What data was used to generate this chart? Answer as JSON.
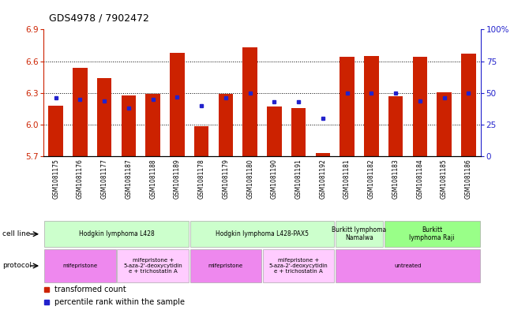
{
  "title": "GDS4978 / 7902472",
  "samples": [
    "GSM1081175",
    "GSM1081176",
    "GSM1081177",
    "GSM1081187",
    "GSM1081188",
    "GSM1081189",
    "GSM1081178",
    "GSM1081179",
    "GSM1081180",
    "GSM1081190",
    "GSM1081191",
    "GSM1081192",
    "GSM1081181",
    "GSM1081182",
    "GSM1081183",
    "GSM1081184",
    "GSM1081185",
    "GSM1081186"
  ],
  "bar_values": [
    6.18,
    6.54,
    6.44,
    6.28,
    6.29,
    6.68,
    5.99,
    6.29,
    6.73,
    6.17,
    6.16,
    5.73,
    6.64,
    6.65,
    6.27,
    6.64,
    6.31,
    6.67
  ],
  "percentile_values": [
    46,
    45,
    44,
    38,
    45,
    47,
    40,
    46,
    50,
    43,
    43,
    30,
    50,
    50,
    50,
    44,
    46,
    50
  ],
  "y_min": 5.7,
  "y_max": 6.9,
  "y_ticks": [
    5.7,
    6.0,
    6.3,
    6.6,
    6.9
  ],
  "right_y_ticks": [
    0,
    25,
    50,
    75,
    100
  ],
  "right_y_labels": [
    "0",
    "25",
    "50",
    "75",
    "100%"
  ],
  "bar_color": "#cc2200",
  "percentile_color": "#2222cc",
  "cell_line_groups": [
    {
      "label": "Hodgkin lymphoma L428",
      "start": 0,
      "end": 5,
      "color": "#ccffcc"
    },
    {
      "label": "Hodgkin lymphoma L428-PAX5",
      "start": 6,
      "end": 11,
      "color": "#ccffcc"
    },
    {
      "label": "Burkitt lymphoma\nNamalwa",
      "start": 12,
      "end": 13,
      "color": "#ccffcc"
    },
    {
      "label": "Burkitt\nlymphoma Raji",
      "start": 14,
      "end": 17,
      "color": "#99ff88"
    }
  ],
  "protocol_groups": [
    {
      "label": "mifepristone",
      "start": 0,
      "end": 2,
      "color": "#ee88ee"
    },
    {
      "label": "mifepristone +\n5-aza-2'-deoxycytidin\ne + trichostatin A",
      "start": 3,
      "end": 5,
      "color": "#ffccff"
    },
    {
      "label": "mifepristone",
      "start": 6,
      "end": 8,
      "color": "#ee88ee"
    },
    {
      "label": "mifepristone +\n5-aza-2'-deoxycytidin\ne + trichostatin A",
      "start": 9,
      "end": 11,
      "color": "#ffccff"
    },
    {
      "label": "untreated",
      "start": 12,
      "end": 17,
      "color": "#ee88ee"
    }
  ],
  "figsize": [
    6.51,
    3.93
  ],
  "dpi": 100
}
